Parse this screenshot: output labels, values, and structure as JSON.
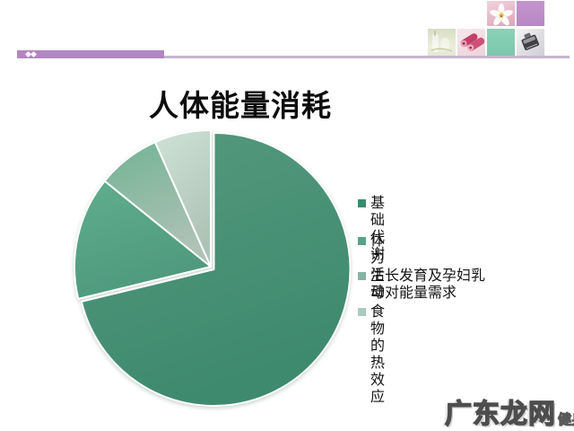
{
  "slide_title": "人体能量消耗",
  "header": {
    "accent_bar_color": "#b286bf",
    "rule_color": "#c6b5d0",
    "marker_color": "#ffffff",
    "tiles": [
      {
        "icon": "orchid-photo"
      },
      {
        "icon": "purple-square"
      },
      {
        "icon": "spa-bottles-photo"
      },
      {
        "icon": "pink-towels-photo"
      },
      {
        "icon": "teal-square"
      },
      {
        "icon": "perfume-bottle-photo"
      }
    ]
  },
  "chart_data": {
    "type": "pie",
    "title": "人体能量消耗",
    "labels": [
      "基础代谢",
      "体力活动",
      "生长发育及孕妇乳母对能量需求",
      "食物的热效应"
    ],
    "values_percent": [
      71.2,
      14.6,
      7.5,
      6.7
    ],
    "colors": [
      "#478f74",
      "#55a385",
      "#8db7a0",
      "#c2d8cc"
    ],
    "slice_gradients": [
      [
        "#55997d",
        "#3e8a6f"
      ],
      [
        "#60ad8e",
        "#4e997d"
      ],
      [
        "#72b394",
        "#aec2b5"
      ],
      [
        "#cfe2d7",
        "#aec3b6"
      ]
    ],
    "slice_border_color": "#ffffff",
    "exploded_slice_index": 0,
    "start_angle_deg": 0,
    "legend_position": "right",
    "grid": false
  },
  "legend": {
    "items": [
      {
        "label": "基础代谢",
        "color": "#3c8a6e"
      },
      {
        "label": "体力活动",
        "color": "#5aa287"
      },
      {
        "label": "生长发育及孕妇乳母对能量需求",
        "color": "#87b4a2"
      },
      {
        "label": "食物的热效应",
        "color": "#abccbc"
      }
    ]
  },
  "watermark": {
    "text": "广东龙网",
    "suffix": "健身"
  }
}
